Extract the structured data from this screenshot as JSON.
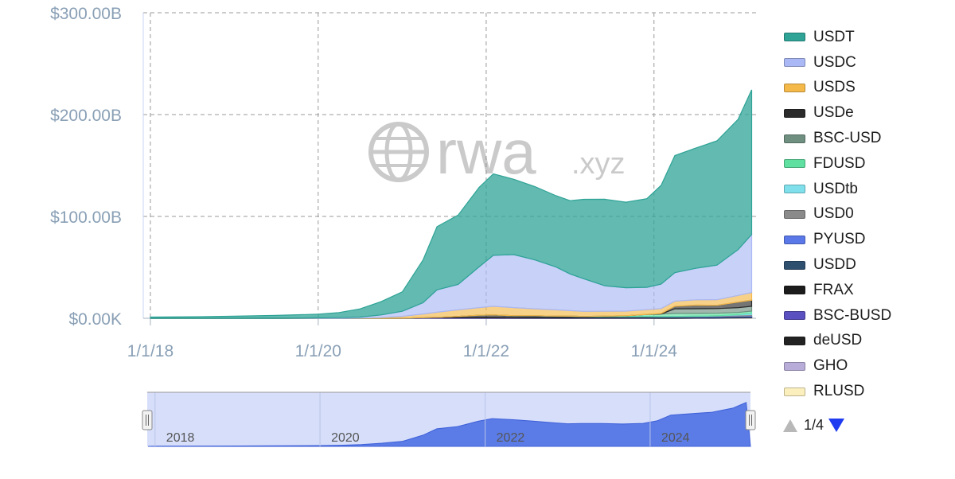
{
  "watermark": {
    "brand": "rwa",
    "domain": ".xyz"
  },
  "pager": {
    "label": "1/4"
  },
  "navigator": {
    "labels": [
      "2018",
      "2020",
      "2022",
      "2024"
    ]
  },
  "colors": {
    "USDT": "#2ea396",
    "USDC": "#aab8f5",
    "USDS": "#f5b94a",
    "USDe": "#2b2b2b",
    "BSC-USD": "#6f8f80",
    "FDUSD": "#5fe0a0",
    "USDtb": "#7fe0ec",
    "USD0": "#8a8a8a",
    "PYUSD": "#5a78e8",
    "USDD": "#2f4f6f",
    "FRAX": "#1c1c1c",
    "BSC-BUSD": "#5a50c0",
    "deUSD": "#222222",
    "GHO": "#b8acd8",
    "RLUSD": "#fbefbd",
    "grid": "#9a9a9a",
    "axis_text": "#8aa0b6",
    "navigator_fill": "#5b7ce6",
    "navigator_bg": "#d6defa"
  },
  "chart_data": {
    "type": "area",
    "stacked": true,
    "xlabel": "",
    "ylabel": "",
    "ylim": [
      0,
      300
    ],
    "y_unit": "billion USD",
    "y_ticks": [
      "$0.00K",
      "$100.00B",
      "$200.00B",
      "$300.00B"
    ],
    "x_ticks": [
      "1/1/18",
      "1/1/20",
      "1/1/22",
      "1/1/24"
    ],
    "grid": true,
    "legend_position": "right",
    "x": [
      "2018-01",
      "2018-07",
      "2019-01",
      "2019-07",
      "2020-01",
      "2020-04",
      "2020-07",
      "2020-10",
      "2021-01",
      "2021-04",
      "2021-06",
      "2021-09",
      "2021-12",
      "2022-02",
      "2022-05",
      "2022-08",
      "2022-11",
      "2023-01",
      "2023-03",
      "2023-06",
      "2023-09",
      "2023-12",
      "2024-02",
      "2024-04",
      "2024-07",
      "2024-10",
      "2025-01",
      "2025-03"
    ],
    "series": [
      {
        "name": "RLUSD",
        "values": [
          0,
          0,
          0,
          0,
          0,
          0,
          0,
          0,
          0,
          0,
          0,
          0,
          0,
          0,
          0,
          0,
          0,
          0,
          0,
          0,
          0,
          0,
          0,
          0,
          0,
          0,
          0.2,
          0.3
        ]
      },
      {
        "name": "GHO",
        "values": [
          0,
          0,
          0,
          0,
          0,
          0,
          0,
          0,
          0,
          0,
          0,
          0,
          0,
          0,
          0,
          0,
          0,
          0,
          0,
          0,
          0,
          0,
          0,
          0,
          0.1,
          0.2,
          0.2,
          0.2
        ]
      },
      {
        "name": "deUSD",
        "values": [
          0,
          0,
          0,
          0,
          0,
          0,
          0,
          0,
          0,
          0,
          0,
          0,
          0,
          0,
          0,
          0,
          0,
          0,
          0,
          0,
          0,
          0,
          0,
          0,
          0,
          0.1,
          0.2,
          0.2
        ]
      },
      {
        "name": "BSC-BUSD",
        "values": [
          0,
          0,
          0,
          0,
          0,
          0,
          0,
          0,
          0,
          0.5,
          0.6,
          0.6,
          0.5,
          0.5,
          0.4,
          0.4,
          0.3,
          0.3,
          0.2,
          0.2,
          0.2,
          0.2,
          0.1,
          0.1,
          0.1,
          0.1,
          0.1,
          0.1
        ]
      },
      {
        "name": "FRAX",
        "values": [
          0,
          0,
          0,
          0,
          0,
          0,
          0,
          0,
          0.1,
          0.2,
          0.3,
          1.2,
          2.5,
          2.8,
          1.6,
          1.4,
          1.1,
          1,
          0.9,
          0.8,
          0.7,
          0.7,
          0.6,
          0.6,
          0.5,
          0.4,
          0.3,
          0.3
        ]
      },
      {
        "name": "USDD",
        "values": [
          0,
          0,
          0,
          0,
          0,
          0,
          0,
          0,
          0,
          0,
          0,
          0,
          0,
          0,
          0.5,
          0.7,
          0.7,
          0.7,
          0.7,
          0.7,
          0.7,
          0.7,
          0.7,
          0.7,
          0.7,
          0.7,
          0.7,
          0.7
        ]
      },
      {
        "name": "PYUSD",
        "values": [
          0,
          0,
          0,
          0,
          0,
          0,
          0,
          0,
          0,
          0,
          0,
          0,
          0,
          0,
          0,
          0,
          0,
          0,
          0,
          0,
          0.1,
          0.2,
          0.3,
          0.4,
          0.4,
          0.5,
          0.5,
          0.7
        ]
      },
      {
        "name": "USD0",
        "values": [
          0,
          0,
          0,
          0,
          0,
          0,
          0,
          0,
          0,
          0,
          0,
          0,
          0,
          0,
          0,
          0,
          0,
          0,
          0,
          0,
          0,
          0,
          0,
          0,
          0.2,
          0.4,
          1,
          1.2
        ]
      },
      {
        "name": "USDtb",
        "values": [
          0,
          0,
          0,
          0,
          0,
          0,
          0,
          0,
          0,
          0,
          0,
          0,
          0,
          0,
          0,
          0,
          0,
          0,
          0,
          0,
          0,
          0,
          0,
          0,
          0,
          0,
          0.5,
          1.3
        ]
      },
      {
        "name": "FDUSD",
        "values": [
          0,
          0,
          0,
          0,
          0,
          0,
          0,
          0,
          0,
          0,
          0,
          0,
          0,
          0,
          0,
          0,
          0,
          0,
          0,
          0.4,
          0.8,
          2,
          2.5,
          3,
          2.8,
          2.5,
          2,
          2
        ]
      },
      {
        "name": "BSC-USD",
        "values": [
          0,
          0,
          0,
          0,
          0,
          0,
          0,
          0,
          0,
          0,
          0,
          0,
          0,
          0,
          0,
          0,
          0,
          0,
          0,
          0,
          0,
          0,
          0,
          4.5,
          4.6,
          4.6,
          4.7,
          4.8
        ]
      },
      {
        "name": "USDe",
        "values": [
          0,
          0,
          0,
          0,
          0,
          0,
          0,
          0,
          0,
          0,
          0,
          0,
          0,
          0,
          0,
          0,
          0,
          0,
          0,
          0,
          0,
          0,
          0.5,
          2.5,
          3.5,
          3.2,
          5.5,
          6
        ]
      },
      {
        "name": "USDS",
        "values": [
          0,
          0,
          0,
          0,
          0,
          0,
          0.2,
          0.8,
          1.8,
          3.5,
          5,
          6.5,
          7.5,
          8.5,
          8,
          6.8,
          6.2,
          5.5,
          5,
          4.8,
          4.5,
          4.6,
          4.8,
          5,
          5.2,
          5.5,
          6.5,
          7.5
        ]
      },
      {
        "name": "USDC",
        "values": [
          0,
          0,
          0,
          0,
          0.5,
          0.6,
          1,
          2.5,
          5,
          11,
          22,
          25,
          40,
          50,
          52,
          48,
          42,
          36,
          32,
          25,
          23,
          22,
          24,
          28,
          31,
          34,
          45,
          57
        ]
      },
      {
        "name": "USDT",
        "values": [
          1.2,
          1.5,
          2,
          2.8,
          3.5,
          5,
          8,
          13,
          19,
          42,
          62,
          68,
          78,
          80,
          74,
          72,
          70,
          72,
          78,
          85,
          84,
          87,
          97,
          115,
          118,
          122,
          128,
          142
        ]
      }
    ]
  },
  "legend": [
    {
      "name": "USDT"
    },
    {
      "name": "USDC"
    },
    {
      "name": "USDS"
    },
    {
      "name": "USDe"
    },
    {
      "name": "BSC-USD"
    },
    {
      "name": "FDUSD"
    },
    {
      "name": "USDtb"
    },
    {
      "name": "USD0"
    },
    {
      "name": "PYUSD"
    },
    {
      "name": "USDD"
    },
    {
      "name": "FRAX"
    },
    {
      "name": "BSC-BUSD"
    },
    {
      "name": "deUSD"
    },
    {
      "name": "GHO"
    },
    {
      "name": "RLUSD"
    }
  ]
}
